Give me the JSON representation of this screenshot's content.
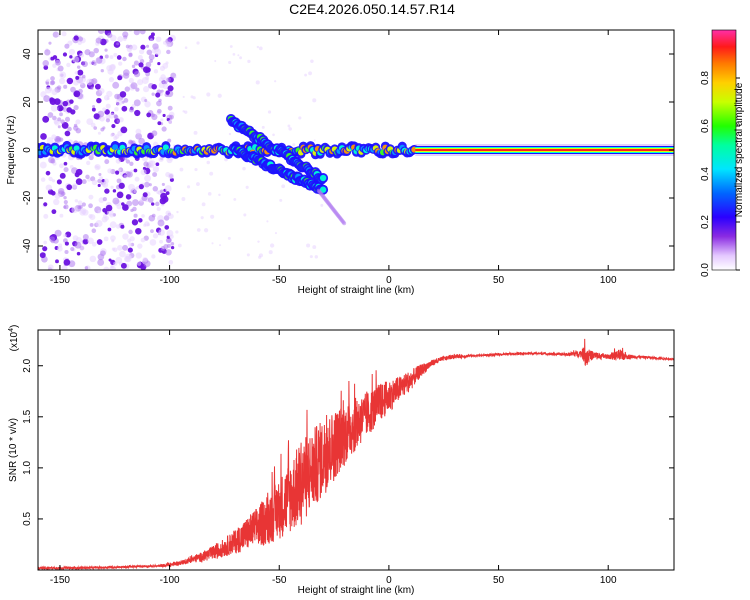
{
  "title": "C2E4.2026.050.14.57.R14",
  "colors": {
    "snr_line": "#e83535",
    "axes": "#000000"
  },
  "chart_data": [
    {
      "type": "heatmap",
      "xlabel": "Height of straight line (km)",
      "ylabel": "Frequency (Hz)",
      "xlim": [
        -160,
        130
      ],
      "ylim": [
        -50,
        50
      ],
      "xticks": [
        -150,
        -100,
        -50,
        0,
        50,
        100
      ],
      "yticks": [
        -40,
        -20,
        0,
        20,
        40
      ],
      "colorbar": {
        "label": "Normalized spectral amplitude",
        "range": [
          0,
          1
        ],
        "ticks": [
          0.0,
          0.2,
          0.4,
          0.6,
          0.8
        ],
        "tick_labels": [
          "0.0",
          "0.2",
          "0.4",
          "0.6",
          "0.8"
        ]
      },
      "features": [
        {
          "name": "carrier",
          "x_range": [
            -160,
            130
          ],
          "freq": 0
        },
        {
          "name": "upper-branch",
          "x_start": -72,
          "x_end": -30,
          "freq_start": 12,
          "freq_end": -12
        },
        {
          "name": "lower-branch",
          "x_start": -70,
          "x_end": -30,
          "freq_start": 0,
          "freq_end": -17
        }
      ]
    },
    {
      "type": "line",
      "xlabel": "Height of straight line (km)",
      "ylabel": "SNR (10 * v/v)",
      "y_multiplier_label": "(x10",
      "y_multiplier_exp": "4",
      "y_multiplier_close": ")",
      "xlim": [
        -160,
        130
      ],
      "ylim": [
        0,
        2.35
      ],
      "xticks": [
        -150,
        -100,
        -50,
        0,
        50,
        100
      ],
      "yticks": [
        0.5,
        1.0,
        1.5,
        2.0
      ],
      "ytick_labels": [
        "0.5",
        "1.0",
        "1.5",
        "2.0"
      ],
      "series": [
        {
          "name": "SNR",
          "x": [
            -160,
            -140,
            -120,
            -105,
            -100,
            -95,
            -90,
            -85,
            -80,
            -75,
            -70,
            -65,
            -60,
            -55,
            -50,
            -45,
            -40,
            -35,
            -30,
            -25,
            -20,
            -15,
            -10,
            -5,
            0,
            5,
            10,
            15,
            20,
            25,
            30,
            40,
            50,
            60,
            70,
            80,
            88,
            90,
            92,
            100,
            105,
            110,
            120,
            130
          ],
          "values": [
            0.02,
            0.02,
            0.03,
            0.04,
            0.05,
            0.07,
            0.1,
            0.13,
            0.17,
            0.22,
            0.28,
            0.35,
            0.42,
            0.5,
            0.6,
            0.72,
            0.85,
            0.98,
            1.1,
            1.22,
            1.33,
            1.43,
            1.52,
            1.62,
            1.7,
            1.78,
            1.86,
            1.96,
            2.03,
            2.07,
            2.09,
            2.1,
            2.11,
            2.12,
            2.12,
            2.11,
            2.12,
            2.1,
            2.1,
            2.09,
            2.1,
            2.09,
            2.08,
            2.06
          ],
          "noise": [
            0.01,
            0.01,
            0.01,
            0.01,
            0.02,
            0.02,
            0.03,
            0.05,
            0.07,
            0.09,
            0.12,
            0.16,
            0.2,
            0.25,
            0.3,
            0.36,
            0.42,
            0.4,
            0.38,
            0.35,
            0.3,
            0.26,
            0.22,
            0.2,
            0.16,
            0.12,
            0.1,
            0.06,
            0.03,
            0.02,
            0.02,
            0.01,
            0.01,
            0.01,
            0.01,
            0.01,
            0.04,
            0.12,
            0.05,
            0.02,
            0.06,
            0.02,
            0.01,
            0.01
          ]
        }
      ]
    }
  ]
}
